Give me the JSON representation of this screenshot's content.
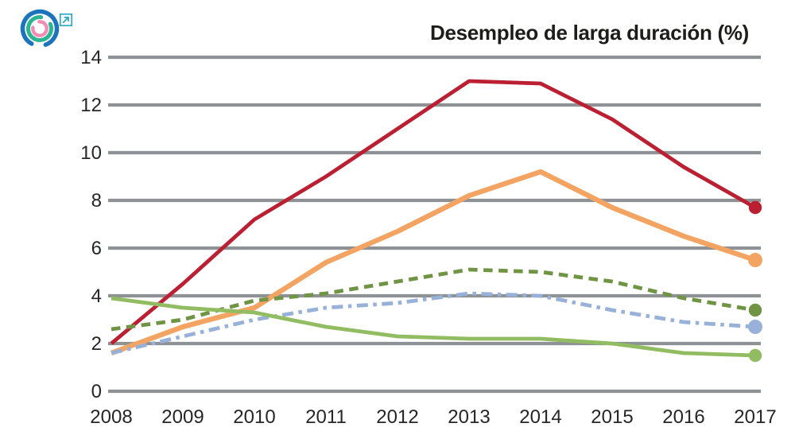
{
  "brand": {
    "logo_icon": "concentric-arcs-logo",
    "external_link_icon": "arrow-up-right-in-box",
    "logo_colors": {
      "outer_arc": "#1b74bc",
      "middle_arc": "#2bb592",
      "inner_arc": "#f18cb4",
      "link_icon": "#2ea9c6"
    }
  },
  "chart_data": {
    "type": "line",
    "title": "Desempleo de larga duración (%)",
    "categories": [
      "2008",
      "2009",
      "2010",
      "2011",
      "2012",
      "2013",
      "2014",
      "2015",
      "2016",
      "2017"
    ],
    "series": [
      {
        "name": "dark-red-solid",
        "color": "#bb2032",
        "line_style": "solid",
        "end_marker": true,
        "values": [
          2.0,
          4.5,
          7.2,
          9.0,
          11.0,
          13.0,
          12.9,
          11.4,
          9.4,
          7.7
        ]
      },
      {
        "name": "orange-solid",
        "color": "#f4a462",
        "line_style": "solid",
        "end_marker": true,
        "values": [
          1.6,
          2.7,
          3.5,
          5.4,
          6.7,
          8.2,
          9.2,
          7.7,
          6.5,
          5.5
        ]
      },
      {
        "name": "green-dashed",
        "color": "#6f9444",
        "line_style": "dashed",
        "end_marker": true,
        "values": [
          2.6,
          3.0,
          3.8,
          4.1,
          4.6,
          5.1,
          5.0,
          4.6,
          3.9,
          3.4
        ]
      },
      {
        "name": "blue-dash-dot",
        "color": "#97b1d8",
        "line_style": "dash-dot",
        "end_marker": true,
        "values": [
          1.6,
          2.3,
          3.0,
          3.5,
          3.7,
          4.1,
          4.0,
          3.4,
          2.9,
          2.7
        ]
      },
      {
        "name": "light-green-solid",
        "color": "#92bc62",
        "line_style": "solid",
        "end_marker": true,
        "values": [
          3.9,
          3.5,
          3.3,
          2.7,
          2.3,
          2.2,
          2.2,
          2.0,
          1.6,
          1.5
        ]
      }
    ],
    "xlabel": "",
    "ylabel": "",
    "ylim": [
      0,
      14
    ],
    "yticks": [
      0,
      2,
      4,
      6,
      8,
      10,
      12,
      14
    ],
    "grid": "horizontal",
    "grid_color": "#8e9295",
    "legend": "none",
    "text_color": "#262626"
  }
}
